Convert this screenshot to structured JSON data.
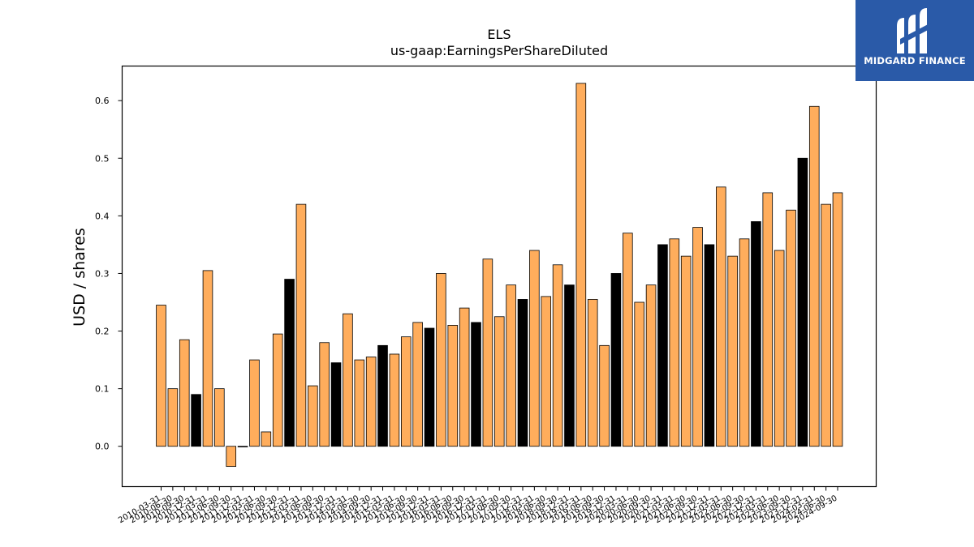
{
  "brand": {
    "name": "MIDGARD FINANCE",
    "logo_icon": "midgard-m-logo-icon",
    "background_color": "#2a5aa8"
  },
  "chart_data": {
    "type": "bar",
    "title": "ELS",
    "subtitle": "us-gaap:EarningsPerShareDiluted",
    "xlabel": "",
    "ylabel": "USD / shares",
    "ylim": [
      -0.07,
      0.66
    ],
    "yticks": [
      0.0,
      0.1,
      0.2,
      0.3,
      0.4,
      0.5,
      0.6
    ],
    "ytick_labels": [
      "0.0",
      "0.1",
      "0.2",
      "0.3",
      "0.4",
      "0.5",
      "0.6"
    ],
    "grid": false,
    "legend": "none",
    "colors": {
      "quarterly": "#ffad5c",
      "annual_q4": "#000000",
      "edge": "#000000"
    },
    "categories": [
      "2010-03-31",
      "2010-06-30",
      "2010-09-30",
      "2010-12-31",
      "2011-03-31",
      "2011-06-30",
      "2011-09-30",
      "2011-12-31",
      "2012-03-31",
      "2012-06-30",
      "2012-09-30",
      "2012-12-31",
      "2013-03-31",
      "2013-06-30",
      "2013-09-30",
      "2013-12-31",
      "2014-03-31",
      "2014-06-30",
      "2014-09-30",
      "2014-12-31",
      "2015-03-31",
      "2015-06-30",
      "2015-09-30",
      "2015-12-31",
      "2016-03-31",
      "2016-06-30",
      "2016-09-30",
      "2016-12-31",
      "2017-03-31",
      "2017-06-30",
      "2017-09-30",
      "2017-12-31",
      "2018-03-31",
      "2018-06-30",
      "2018-09-30",
      "2018-12-31",
      "2019-03-31",
      "2019-06-30",
      "2019-09-30",
      "2019-12-31",
      "2020-03-31",
      "2020-06-30",
      "2020-09-30",
      "2020-12-31",
      "2021-03-31",
      "2021-06-30",
      "2021-09-30",
      "2021-12-31",
      "2022-03-31",
      "2022-06-30",
      "2022-09-30",
      "2022-12-31",
      "2023-03-31",
      "2023-06-30",
      "2023-09-30",
      "2023-12-31",
      "2024-03-31",
      "2024-06-30",
      "2024-09-30"
    ],
    "values": [
      0.245,
      0.1,
      0.185,
      0.09,
      0.305,
      0.1,
      -0.035,
      0.0,
      0.15,
      0.025,
      0.195,
      0.29,
      0.42,
      0.105,
      0.18,
      0.145,
      0.23,
      0.15,
      0.155,
      0.175,
      0.16,
      0.19,
      0.215,
      0.205,
      0.3,
      0.21,
      0.24,
      0.215,
      0.325,
      0.225,
      0.28,
      0.255,
      0.34,
      0.26,
      0.315,
      0.28,
      0.63,
      0.255,
      0.175,
      0.3,
      0.37,
      0.25,
      0.28,
      0.35,
      0.36,
      0.33,
      0.38,
      0.35,
      0.45,
      0.33,
      0.36,
      0.39,
      0.44,
      0.34,
      0.41,
      0.5,
      0.59,
      0.42,
      0.44
    ],
    "bar_colors": [
      "quarterly",
      "quarterly",
      "quarterly",
      "annual_q4",
      "quarterly",
      "quarterly",
      "quarterly",
      "annual_q4",
      "quarterly",
      "quarterly",
      "quarterly",
      "annual_q4",
      "quarterly",
      "quarterly",
      "quarterly",
      "annual_q4",
      "quarterly",
      "quarterly",
      "quarterly",
      "annual_q4",
      "quarterly",
      "quarterly",
      "quarterly",
      "annual_q4",
      "quarterly",
      "quarterly",
      "quarterly",
      "annual_q4",
      "quarterly",
      "quarterly",
      "quarterly",
      "annual_q4",
      "quarterly",
      "quarterly",
      "quarterly",
      "annual_q4",
      "quarterly",
      "quarterly",
      "quarterly",
      "annual_q4",
      "quarterly",
      "quarterly",
      "quarterly",
      "annual_q4",
      "quarterly",
      "quarterly",
      "quarterly",
      "annual_q4",
      "quarterly",
      "quarterly",
      "quarterly",
      "annual_q4",
      "quarterly",
      "quarterly",
      "quarterly",
      "annual_q4",
      "quarterly",
      "quarterly",
      "quarterly"
    ]
  }
}
